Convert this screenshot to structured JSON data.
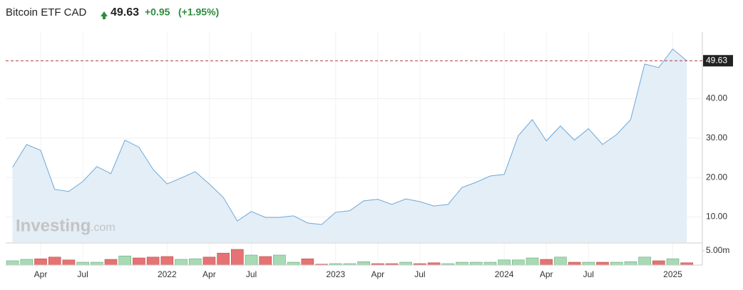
{
  "header": {
    "title": "Bitcoin ETF CAD",
    "price": "49.63",
    "change": "+0.95",
    "change_pct": "(+1.95%)"
  },
  "watermark": [
    "Investing",
    ".com"
  ],
  "chart_data": [
    {
      "type": "area",
      "line_color": "#6fa8d6",
      "fill_color": "#e4eef7",
      "x": [
        "2021-02",
        "2021-03",
        "2021-04",
        "2021-05",
        "2021-06",
        "2021-07",
        "2021-08",
        "2021-09",
        "2021-10",
        "2021-11",
        "2021-12",
        "2022-01",
        "2022-02",
        "2022-03",
        "2022-04",
        "2022-05",
        "2022-06",
        "2022-07",
        "2022-08",
        "2022-09",
        "2022-10",
        "2022-11",
        "2022-12",
        "2023-01",
        "2023-02",
        "2023-03",
        "2023-04",
        "2023-05",
        "2023-06",
        "2023-07",
        "2023-08",
        "2023-09",
        "2023-10",
        "2023-11",
        "2023-12",
        "2024-01",
        "2024-02",
        "2024-03",
        "2024-04",
        "2024-05",
        "2024-06",
        "2024-07",
        "2024-08",
        "2024-09",
        "2024-10",
        "2024-11",
        "2024-12",
        "2025-01",
        "2025-02"
      ],
      "values": [
        22.6,
        28.4,
        26.9,
        17.0,
        16.5,
        19.0,
        22.8,
        21.0,
        29.5,
        27.7,
        22.1,
        18.4,
        19.9,
        21.5,
        18.4,
        15.0,
        9.0,
        11.4,
        9.9,
        9.9,
        10.3,
        8.5,
        8.1,
        11.2,
        11.6,
        14.1,
        14.5,
        13.2,
        14.6,
        13.9,
        12.8,
        13.2,
        17.5,
        18.8,
        20.4,
        20.8,
        30.6,
        34.7,
        29.3,
        33.1,
        29.5,
        32.4,
        28.4,
        30.9,
        34.7,
        48.8,
        47.9,
        52.6,
        49.63
      ],
      "ylim": [
        3.6,
        56.9
      ],
      "yticks": [
        {
          "value": 10,
          "label": "10.00"
        },
        {
          "value": 20,
          "label": "20.00"
        },
        {
          "value": 30,
          "label": "30.00"
        },
        {
          "value": 40,
          "label": "40.00"
        }
      ],
      "last_price": {
        "value": 49.63,
        "label": "49.63"
      },
      "grid": true
    },
    {
      "type": "bar",
      "x": [
        "2021-02",
        "2021-03",
        "2021-04",
        "2021-05",
        "2021-06",
        "2021-07",
        "2021-08",
        "2021-09",
        "2021-10",
        "2021-11",
        "2021-12",
        "2022-01",
        "2022-02",
        "2022-03",
        "2022-04",
        "2022-05",
        "2022-06",
        "2022-07",
        "2022-08",
        "2022-09",
        "2022-10",
        "2022-11",
        "2022-12",
        "2023-01",
        "2023-02",
        "2023-03",
        "2023-04",
        "2023-05",
        "2023-06",
        "2023-07",
        "2023-08",
        "2023-09",
        "2023-10",
        "2023-11",
        "2023-12",
        "2024-01",
        "2024-02",
        "2024-03",
        "2024-04",
        "2024-05",
        "2024-06",
        "2024-07",
        "2024-08",
        "2024-09",
        "2024-10",
        "2024-11",
        "2024-12",
        "2025-01",
        "2025-02"
      ],
      "values": [
        1.5,
        2.0,
        2.2,
        2.8,
        1.8,
        1.0,
        1.0,
        2.0,
        3.2,
        2.5,
        2.8,
        3.0,
        2.0,
        2.2,
        2.8,
        4.2,
        5.5,
        3.5,
        3.0,
        3.5,
        1.0,
        2.2,
        0.3,
        0.5,
        0.5,
        1.2,
        0.5,
        0.5,
        1.0,
        0.5,
        0.8,
        0.5,
        1.0,
        1.0,
        1.0,
        1.8,
        1.8,
        2.5,
        2.0,
        2.8,
        1.0,
        1.0,
        1.0,
        1.0,
        1.2,
        2.8,
        1.5,
        2.2,
        0.8
      ],
      "colors": [
        "#a8dab5",
        "#a8dab5",
        "#e57373",
        "#e57373",
        "#e57373",
        "#a8dab5",
        "#a8dab5",
        "#e57373",
        "#a8dab5",
        "#e57373",
        "#e57373",
        "#e57373",
        "#a8dab5",
        "#a8dab5",
        "#e57373",
        "#e57373",
        "#e57373",
        "#a8dab5",
        "#e57373",
        "#a8dab5",
        "#a8dab5",
        "#e57373",
        "#e57373",
        "#a8dab5",
        "#a8dab5",
        "#a8dab5",
        "#e57373",
        "#e57373",
        "#a8dab5",
        "#e57373",
        "#e57373",
        "#a8dab5",
        "#a8dab5",
        "#a8dab5",
        "#a8dab5",
        "#a8dab5",
        "#a8dab5",
        "#a8dab5",
        "#e57373",
        "#a8dab5",
        "#e57373",
        "#a8dab5",
        "#e57373",
        "#a8dab5",
        "#a8dab5",
        "#a8dab5",
        "#e57373",
        "#a8dab5",
        "#e57373"
      ],
      "ylim": [
        0,
        7.5
      ],
      "yticks": [
        {
          "value": 5,
          "label": "5.00m"
        }
      ],
      "xticks": [
        {
          "value": "2021-04",
          "label": "Apr"
        },
        {
          "value": "2021-07",
          "label": "Jul"
        },
        {
          "value": "2022-01",
          "label": "2022"
        },
        {
          "value": "2022-04",
          "label": "Apr"
        },
        {
          "value": "2022-07",
          "label": "Jul"
        },
        {
          "value": "2023-01",
          "label": "2023"
        },
        {
          "value": "2023-04",
          "label": "Apr"
        },
        {
          "value": "2023-07",
          "label": "Jul"
        },
        {
          "value": "2024-01",
          "label": "2024"
        },
        {
          "value": "2024-04",
          "label": "Apr"
        },
        {
          "value": "2024-07",
          "label": "Jul"
        },
        {
          "value": "2025-01",
          "label": "2025"
        }
      ]
    }
  ]
}
